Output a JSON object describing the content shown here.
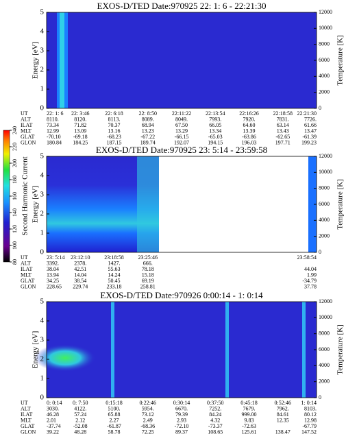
{
  "chart_data": [
    {
      "type": "spectrogram",
      "title": "EXOS-D/TED  Date:970925  22: 1: 6 - 22:21:30",
      "ylabel": "Energy [eV]",
      "ylim": [
        0,
        5
      ],
      "yticks": [
        0,
        1,
        2,
        3,
        4,
        5
      ],
      "y2label": "Temperature [K]",
      "y2lim": [
        0,
        12000
      ],
      "y2ticks": [
        0,
        2000,
        4000,
        6000,
        8000,
        10000,
        12000
      ],
      "rows": [
        {
          "label": "UT",
          "values": [
            "22: 1: 6",
            "22: 3:46",
            "22: 6:18",
            "22: 8:50",
            "22:11:22",
            "22:13:54",
            "22:16:26",
            "22:18:58",
            "22:21:30"
          ]
        },
        {
          "label": "ALT",
          "values": [
            "8110.",
            "8120.",
            "8113.",
            "8089.",
            "8049.",
            "7993.",
            "7920.",
            "7831.",
            "7726."
          ]
        },
        {
          "label": "ILAT",
          "values": [
            "73.34",
            "71.82",
            "70.37",
            "68.94",
            "67.50",
            "66.05",
            "64.60",
            "63.14",
            "61.66"
          ]
        },
        {
          "label": "MLT",
          "values": [
            "12.99",
            "13.09",
            "13.16",
            "13.23",
            "13.29",
            "13.34",
            "13.39",
            "13.43",
            "13.47"
          ]
        },
        {
          "label": "GLAT",
          "values": [
            "-70.10",
            "-69.18",
            "-68.23",
            "-67.22",
            "-66.15",
            "-65.03",
            "-63.86",
            "-62.65",
            "-61.39"
          ]
        },
        {
          "label": "GLON",
          "values": [
            "180.84",
            "184.25",
            "187.15",
            "189.74",
            "192.07",
            "194.15",
            "196.03",
            "197.71",
            "199.23"
          ]
        }
      ]
    },
    {
      "type": "spectrogram",
      "title": "EXOS-D/TED  Date:970925  23: 5:14 - 23:59:58",
      "ylabel": "Energy [eV]",
      "ylim": [
        0,
        5
      ],
      "yticks": [
        0,
        1,
        2,
        3,
        4,
        5
      ],
      "y2label": "Temperature [K]",
      "y2lim": [
        0,
        12000
      ],
      "y2ticks": [
        0,
        2000,
        4000,
        6000,
        8000,
        10000,
        12000
      ],
      "colorbar": {
        "label": "Second Harmonic Current",
        "lim": [
          80,
          240
        ],
        "ticks": [
          80,
          100,
          120,
          140,
          160,
          180,
          200,
          220,
          240
        ]
      },
      "rows": [
        {
          "label": "UT",
          "values": [
            "23: 5:14",
            "23:12:10",
            "23:18:58",
            "23:25:46",
            null,
            null,
            null,
            null,
            "23:58:54"
          ]
        },
        {
          "label": "ALT",
          "values": [
            "3392.",
            "2378.",
            "1427.",
            "666.",
            null,
            null,
            null,
            null,
            null
          ]
        },
        {
          "label": "ILAT",
          "values": [
            "38.04",
            "42.51",
            "55.63",
            "78.18",
            null,
            null,
            null,
            null,
            "44.04"
          ]
        },
        {
          "label": "MLT",
          "values": [
            "13.94",
            "14.04",
            "14.24",
            "15.18",
            null,
            null,
            null,
            null,
            "1.99"
          ]
        },
        {
          "label": "GLAT",
          "values": [
            "34.25",
            "38.54",
            "50.45",
            "69.19",
            null,
            null,
            null,
            null,
            "-34.79"
          ]
        },
        {
          "label": "GLON",
          "values": [
            "228.65",
            "229.74",
            "233.18",
            "258.81",
            null,
            null,
            null,
            null,
            "37.78"
          ]
        }
      ]
    },
    {
      "type": "spectrogram",
      "title": "EXOS-D/TED  Date:970926  0:00:14 - 1: 0:14",
      "ylabel": "Energy [eV]",
      "ylim": [
        0,
        5
      ],
      "yticks": [
        0,
        1,
        2,
        3,
        4,
        5
      ],
      "y2label": "Temperature [K]",
      "y2lim": [
        0,
        12000
      ],
      "y2ticks": [
        0,
        2000,
        4000,
        6000,
        8000,
        10000,
        12000
      ],
      "rows": [
        {
          "label": "UT",
          "values": [
            "0: 0:14",
            "0: 7:50",
            "0:15:18",
            "0:22:46",
            "0:30:14",
            "0:37:50",
            "0:45:18",
            "0:52:46",
            "1: 0:14"
          ]
        },
        {
          "label": "ALT",
          "values": [
            "3030.",
            "4122.",
            "5100.",
            "5954.",
            "6670.",
            "7252.",
            "7679.",
            "7962.",
            "8103."
          ]
        },
        {
          "label": "ILAT",
          "values": [
            "46.28",
            "57.24",
            "65.88",
            "73.12",
            "79.39",
            "84.24",
            "999.00",
            "84.61",
            "80.12"
          ]
        },
        {
          "label": "MLT",
          "values": [
            "2.01",
            "2.12",
            "2.27",
            "2.49",
            "2.93",
            "4.32",
            "9.83",
            "12.35",
            "12.98"
          ]
        },
        {
          "label": "GLAT",
          "values": [
            "-37.74",
            "-52.08",
            "-61.87",
            "-68.36",
            "-72.10",
            "-73.37",
            "-72.63",
            null,
            "-67.79"
          ]
        },
        {
          "label": "GLON",
          "values": [
            "39.22",
            "48.28",
            "58.78",
            "72.25",
            "89.37",
            "108.65",
            "125.61",
            "138.47",
            "147.52"
          ]
        }
      ]
    }
  ]
}
